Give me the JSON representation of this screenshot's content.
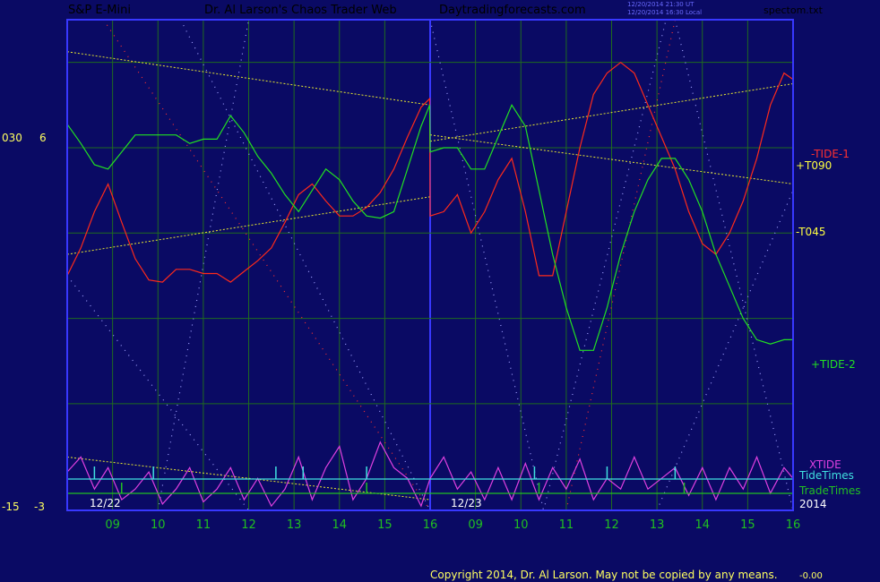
{
  "header": {
    "symbol": "S&P E-Mini",
    "title": "Dr. Al Larson's Chaos Trader Web",
    "site": "Daytradingforecasts.com",
    "stamp1": "12/20/2014 21:30 UT",
    "stamp2": "12/20/2014 16:30 Local",
    "file": "spectom.txt"
  },
  "left_axis": {
    "top_a": "030",
    "top_b": "6",
    "bot_a": "-15",
    "bot_b": "-3"
  },
  "right_labels": {
    "tide1": "-TIDE-1",
    "t090": "+T090",
    "t045": "-T045",
    "tide2": "+TIDE-2",
    "xtide": "XTIDE",
    "tidetimes": "TideTimes",
    "tradetimes": "TradeTimes",
    "year": "2014"
  },
  "copyright": "Copyright 2014, Dr. Al Larson. May not be copied by any means.",
  "copyright_tail": "-0.00",
  "colors": {
    "background": "#0a0a64",
    "frame": "#3838ff",
    "grid": "#1f6b1f",
    "tide1": "#ff2a1a",
    "tide2": "#22e022",
    "xtide": "#e040e0",
    "tidetimes": "#40e0e0",
    "tradetimes": "#22c022",
    "trendline": "#e8e830",
    "title": "#ffff80",
    "symbol": "#ff3030",
    "site": "#ff40ff",
    "hours": "#20c020"
  },
  "chart_data": {
    "type": "line",
    "days": [
      "12/22",
      "12/23"
    ],
    "hour_ticks": [
      "09",
      "10",
      "11",
      "12",
      "13",
      "14",
      "15",
      "16",
      "09",
      "10",
      "11",
      "12",
      "13",
      "14",
      "15",
      "16"
    ],
    "series": [
      {
        "name": "-TIDE-1",
        "x": [
          0,
          0.3,
          0.6,
          0.9,
          1.2,
          1.5,
          1.8,
          2.1,
          2.4,
          2.7,
          3.0,
          3.3,
          3.6,
          3.9,
          4.2,
          4.5,
          4.8,
          5.1,
          5.4,
          5.7,
          6.0,
          6.3,
          6.6,
          6.9,
          7.2,
          7.5,
          7.8,
          7.99,
          8.0,
          8.3,
          8.6,
          8.9,
          9.2,
          9.5,
          9.8,
          10.1,
          10.4,
          10.7,
          11.0,
          11.3,
          11.6,
          11.9,
          12.2,
          12.5,
          12.8,
          13.1,
          13.4,
          13.7,
          14.0,
          14.3,
          14.6,
          14.9,
          15.2,
          15.5,
          15.8,
          16.0
        ],
        "values": [
          -4.0,
          -2.7,
          -1.0,
          0.3,
          -1.5,
          -3.2,
          -4.2,
          -4.3,
          -3.7,
          -3.7,
          -3.9,
          -3.9,
          -4.3,
          -3.8,
          -3.3,
          -2.7,
          -1.5,
          -0.2,
          0.3,
          -0.5,
          -1.2,
          -1.2,
          -0.8,
          -0.1,
          1.0,
          2.5,
          3.9,
          4.3,
          -1.2,
          -1.0,
          -0.2,
          -2.0,
          -1.0,
          0.5,
          1.5,
          -1.0,
          -4.0,
          -4.0,
          -1.0,
          2.0,
          4.5,
          5.5,
          6.0,
          5.5,
          4.0,
          2.5,
          1.0,
          -1.0,
          -2.5,
          -3.0,
          -2.0,
          -0.5,
          1.5,
          4.0,
          5.5,
          5.2
        ]
      },
      {
        "name": "+TIDE-2",
        "x": [
          0,
          0.3,
          0.6,
          0.9,
          1.2,
          1.5,
          1.8,
          2.1,
          2.4,
          2.7,
          3.0,
          3.3,
          3.6,
          3.9,
          4.2,
          4.5,
          4.8,
          5.1,
          5.4,
          5.7,
          6.0,
          6.3,
          6.6,
          6.9,
          7.2,
          7.5,
          7.8,
          7.99,
          8.0,
          8.3,
          8.6,
          8.9,
          9.2,
          9.5,
          9.8,
          10.1,
          10.4,
          10.7,
          11.0,
          11.3,
          11.6,
          11.9,
          12.2,
          12.5,
          12.8,
          13.1,
          13.4,
          13.7,
          14.0,
          14.3,
          14.6,
          14.9,
          15.2,
          15.5,
          15.8,
          16.0
        ],
        "values": [
          3.1,
          2.2,
          1.2,
          1.0,
          1.8,
          2.6,
          2.6,
          2.6,
          2.6,
          2.2,
          2.4,
          2.4,
          3.5,
          2.7,
          1.6,
          0.8,
          -0.2,
          -1.0,
          0.0,
          1.0,
          0.5,
          -0.5,
          -1.2,
          -1.3,
          -1.0,
          1.0,
          3.0,
          4.0,
          1.8,
          2.0,
          2.0,
          1.0,
          1.0,
          2.5,
          4.0,
          3.0,
          0.0,
          -3.0,
          -5.5,
          -7.5,
          -7.5,
          -5.5,
          -3.0,
          -1.0,
          0.5,
          1.5,
          1.5,
          0.5,
          -1.0,
          -3.0,
          -4.5,
          -6.0,
          -7.0,
          -7.2,
          -7.0,
          -7.0
        ]
      },
      {
        "name": "XTIDE",
        "x": [
          0,
          0.3,
          0.6,
          0.9,
          1.2,
          1.5,
          1.8,
          2.1,
          2.4,
          2.7,
          3.0,
          3.3,
          3.6,
          3.9,
          4.2,
          4.5,
          4.8,
          5.1,
          5.4,
          5.7,
          6.0,
          6.3,
          6.6,
          6.9,
          7.2,
          7.5,
          7.8,
          8.0,
          8.3,
          8.6,
          8.9,
          9.2,
          9.5,
          9.8,
          10.1,
          10.4,
          10.7,
          11.0,
          11.3,
          11.6,
          11.9,
          12.2,
          12.5,
          12.8,
          13.1,
          13.4,
          13.7,
          14.0,
          14.3,
          14.6,
          14.9,
          15.2,
          15.5,
          15.8,
          16.0
        ],
        "values": [
          -13.2,
          -12.5,
          -14.0,
          -13.0,
          -14.5,
          -14.0,
          -13.2,
          -14.7,
          -14.0,
          -13.0,
          -14.6,
          -14.0,
          -13.0,
          -14.5,
          -13.5,
          -14.8,
          -14.0,
          -12.5,
          -14.5,
          -13.0,
          -12.0,
          -14.5,
          -13.5,
          -11.8,
          -13.0,
          -13.5,
          -14.8,
          -13.5,
          -12.5,
          -14.0,
          -13.2,
          -14.5,
          -13.0,
          -14.5,
          -12.8,
          -14.5,
          -13.0,
          -14.0,
          -12.6,
          -14.5,
          -13.5,
          -14.0,
          -12.5,
          -14.0,
          -13.5,
          -13.0,
          -14.3,
          -13.0,
          -14.5,
          -13.0,
          -14.0,
          -12.5,
          -14.2,
          -13.0,
          -13.5
        ]
      }
    ],
    "tide_times_x": [
      0.6,
      1.9,
      4.6,
      5.2,
      6.6,
      10.3,
      11.9,
      13.4
    ],
    "trade_times_x": [
      1.2,
      6.6,
      10.4,
      13.6
    ],
    "ylim": [
      -15,
      8
    ],
    "xlim": [
      0,
      16
    ]
  }
}
